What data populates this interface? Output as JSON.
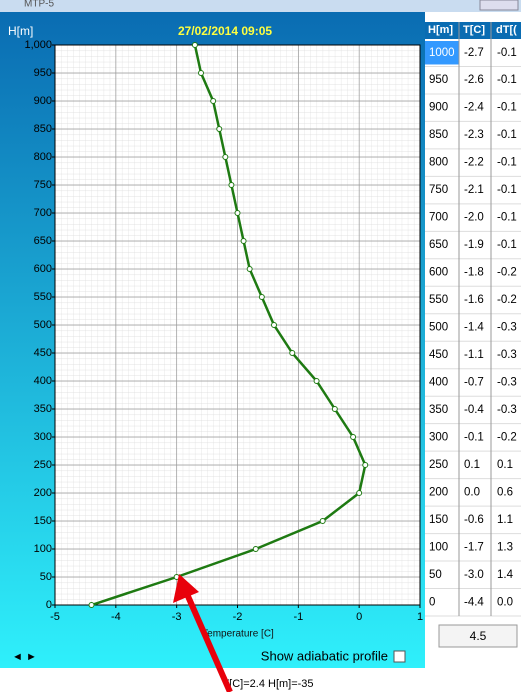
{
  "window": {
    "title": "MTP-5"
  },
  "chart_data": {
    "type": "line",
    "title": "27/02/2014 09:05",
    "y_label": "H[m]",
    "x_label": "Temperature [C]",
    "x": [
      -4.4,
      -3.0,
      -1.7,
      -0.6,
      0.0,
      0.1,
      -0.1,
      -0.4,
      -0.7,
      -1.1,
      -1.4,
      -1.6,
      -1.8,
      -1.9,
      -2.0,
      -2.1,
      -2.2,
      -2.3,
      -2.4,
      -2.6,
      -2.7
    ],
    "series": [
      {
        "color": "#1e7a12",
        "values": [
          0,
          50,
          100,
          150,
          200,
          250,
          300,
          350,
          400,
          450,
          500,
          550,
          600,
          650,
          700,
          750,
          800,
          850,
          900,
          950,
          1000
        ]
      }
    ],
    "xlim": [
      -5,
      1
    ],
    "xticks": [
      -5,
      -4,
      -3,
      -2,
      -1,
      0,
      1
    ],
    "ylim": [
      0,
      1000
    ],
    "yticks": [
      0,
      50,
      100,
      150,
      200,
      250,
      300,
      350,
      400,
      450,
      500,
      550,
      600,
      650,
      700,
      750,
      800,
      850,
      900,
      950,
      {
        "value": 1000,
        "label": "1,000"
      }
    ],
    "grid": true
  },
  "table": {
    "headers": [
      "H[m]",
      "T[C]",
      "dT[("
    ],
    "rows": [
      [
        "1000",
        "-2.7",
        "-0.1"
      ],
      [
        "950",
        "-2.6",
        "-0.1"
      ],
      [
        "900",
        "-2.4",
        "-0.1"
      ],
      [
        "850",
        "-2.3",
        "-0.1"
      ],
      [
        "800",
        "-2.2",
        "-0.1"
      ],
      [
        "750",
        "-2.1",
        "-0.1"
      ],
      [
        "700",
        "-2.0",
        "-0.1"
      ],
      [
        "650",
        "-1.9",
        "-0.1"
      ],
      [
        "600",
        "-1.8",
        "-0.2"
      ],
      [
        "550",
        "-1.6",
        "-0.2"
      ],
      [
        "500",
        "-1.4",
        "-0.3"
      ],
      [
        "450",
        "-1.1",
        "-0.3"
      ],
      [
        "400",
        "-0.7",
        "-0.3"
      ],
      [
        "350",
        "-0.4",
        "-0.3"
      ],
      [
        "300",
        "-0.1",
        "-0.2"
      ],
      [
        "250",
        "0.1",
        "0.1"
      ],
      [
        "200",
        "0.0",
        "0.6"
      ],
      [
        "150",
        "-0.6",
        "1.1"
      ],
      [
        "100",
        "-1.7",
        "1.3"
      ],
      [
        "50",
        "-3.0",
        "1.4"
      ],
      [
        "0",
        "-4.4",
        "0.0"
      ]
    ]
  },
  "controls": {
    "value_box": "4.5",
    "adiabatic_label": "Show adiabatic profile"
  },
  "status": "T[C]=2.4 H[m]=-35"
}
